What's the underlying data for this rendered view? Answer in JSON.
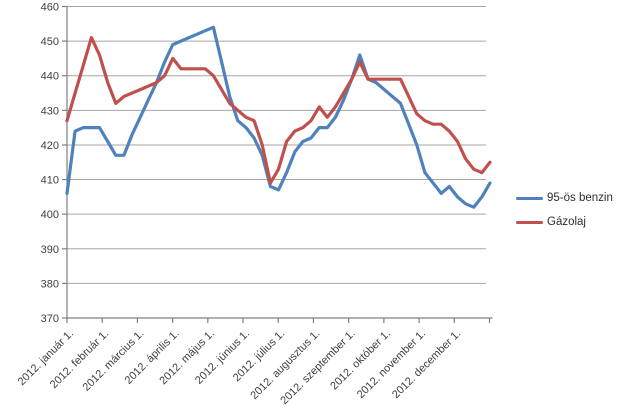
{
  "chart_data": {
    "type": "line",
    "title": "",
    "xlabel": "",
    "ylabel": "",
    "ylim": [
      370,
      460
    ],
    "y_ticks": [
      370,
      380,
      390,
      400,
      410,
      420,
      430,
      440,
      450,
      460
    ],
    "x_tick_labels": [
      "2012. január 1.",
      "2012. február 1.",
      "2012. március 1.",
      "2012. április 1.",
      "2012. május 1.",
      "2012. június 1.",
      "2012. július 1.",
      "2012. augusztus 1.",
      "2012. szeptember 1.",
      "2012. október 1.",
      "2012. november 1.",
      "2012. december 1."
    ],
    "x_interval": "weekly, 53 evenly spaced points spanning the year 2012",
    "grid": "horizontal gridlines on",
    "legend_position": "right",
    "series": [
      {
        "name": "95-ös benzin",
        "color": "#4F81BD",
        "values": [
          406,
          424,
          425,
          425,
          425,
          421,
          417,
          417,
          423,
          428,
          433,
          438,
          444,
          449,
          450,
          451,
          452,
          453,
          454,
          444,
          434,
          427,
          425,
          422,
          417,
          408,
          407,
          412,
          418,
          421,
          422,
          425,
          425,
          428,
          433,
          439,
          446,
          439,
          438,
          436,
          434,
          432,
          426,
          420,
          412,
          409,
          406,
          408,
          405,
          403,
          402,
          405,
          409
        ]
      },
      {
        "name": "Gázolaj",
        "color": "#C0504D",
        "values": [
          427,
          435,
          443,
          451,
          446,
          438,
          432,
          434,
          435,
          436,
          437,
          438,
          440,
          445,
          442,
          442,
          442,
          442,
          440,
          436,
          432,
          430,
          428,
          427,
          420,
          409,
          413,
          421,
          424,
          425,
          427,
          431,
          428,
          431,
          435,
          439,
          444,
          439,
          439,
          439,
          439,
          439,
          434,
          429,
          427,
          426,
          426,
          424,
          421,
          416,
          413,
          412,
          415
        ]
      }
    ]
  },
  "legend": {
    "items": [
      {
        "label": "95-ös benzin",
        "color": "#4F81BD"
      },
      {
        "label": "Gázolaj",
        "color": "#C0504D"
      }
    ]
  },
  "colors": {
    "background": "#ffffff",
    "gridline": "#a6a6a6",
    "axis": "#808080",
    "tick_label": "#3f3f3f",
    "series_blue": "#4F81BD",
    "series_red": "#C0504D"
  }
}
